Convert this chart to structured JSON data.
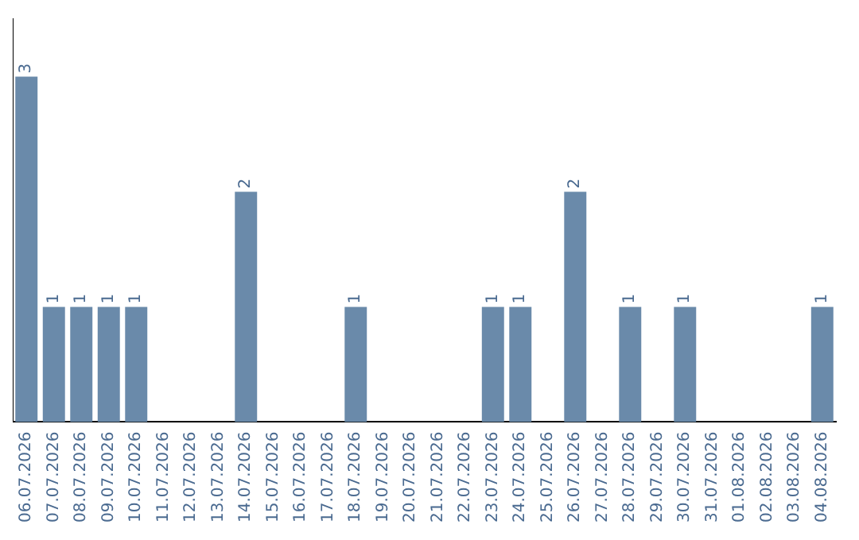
{
  "chart_data": {
    "type": "bar",
    "categories": [
      "06.07.2026",
      "07.07.2026",
      "08.07.2026",
      "09.07.2026",
      "10.07.2026",
      "11.07.2026",
      "12.07.2026",
      "13.07.2026",
      "14.07.2026",
      "15.07.2026",
      "16.07.2026",
      "17.07.2026",
      "18.07.2026",
      "19.07.2026",
      "20.07.2026",
      "21.07.2026",
      "22.07.2026",
      "23.07.2026",
      "24.07.2026",
      "25.07.2026",
      "26.07.2026",
      "27.07.2026",
      "28.07.2026",
      "29.07.2026",
      "30.07.2026",
      "31.07.2026",
      "01.08.2026",
      "02.08.2026",
      "03.08.2026",
      "04.08.2026"
    ],
    "values": [
      3,
      1,
      1,
      1,
      1,
      0,
      0,
      0,
      2,
      0,
      0,
      0,
      1,
      0,
      0,
      0,
      0,
      1,
      1,
      0,
      2,
      0,
      1,
      0,
      1,
      0,
      0,
      0,
      0,
      1
    ],
    "value_labels": [
      "3",
      "1",
      "1",
      "1",
      "1",
      null,
      null,
      null,
      "2",
      null,
      null,
      null,
      "1",
      null,
      null,
      null,
      null,
      "1",
      "1",
      null,
      "2",
      null,
      "1",
      null,
      "1",
      null,
      null,
      null,
      null,
      "1"
    ],
    "color": "#6a8aaa",
    "grid": false,
    "legend": false,
    "tick_labels": "x"
  }
}
